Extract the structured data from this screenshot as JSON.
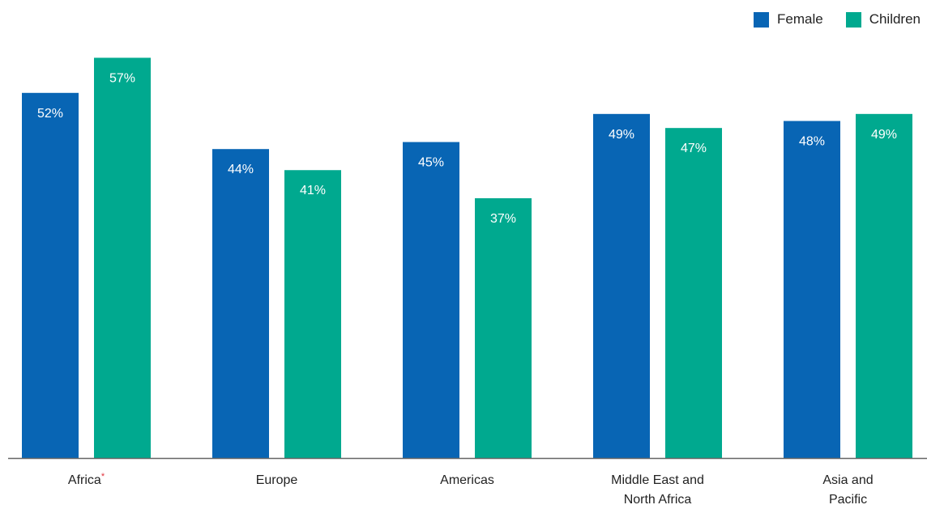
{
  "colors": {
    "female": "#0865B4",
    "children": "#00A98F",
    "asterisk": "#E0303A",
    "axis": "#666666"
  },
  "chart_data": {
    "type": "bar",
    "title": "",
    "xlabel": "",
    "ylabel": "",
    "ylim": [
      0,
      63.5
    ],
    "grid": false,
    "legend_position": "top-right",
    "categories": [
      "Africa",
      "Europe",
      "Americas",
      "Middle East and North Africa",
      "Asia and Pacific"
    ],
    "category_lines": [
      [
        "Africa"
      ],
      [
        "Europe"
      ],
      [
        "Americas"
      ],
      [
        "Middle East and",
        "North Africa"
      ],
      [
        "Asia and",
        "Pacific"
      ]
    ],
    "category_marks": [
      "*",
      "",
      "",
      "",
      ""
    ],
    "series": [
      {
        "name": "Female",
        "color": "#0865B4",
        "values": [
          52,
          44,
          45,
          49,
          48
        ],
        "labels": [
          "52%",
          "44%",
          "45%",
          "49%",
          "48%"
        ]
      },
      {
        "name": "Children",
        "color": "#00A98F",
        "values": [
          57,
          41,
          37,
          47,
          49
        ],
        "labels": [
          "57%",
          "41%",
          "37%",
          "47%",
          "49%"
        ]
      }
    ]
  }
}
